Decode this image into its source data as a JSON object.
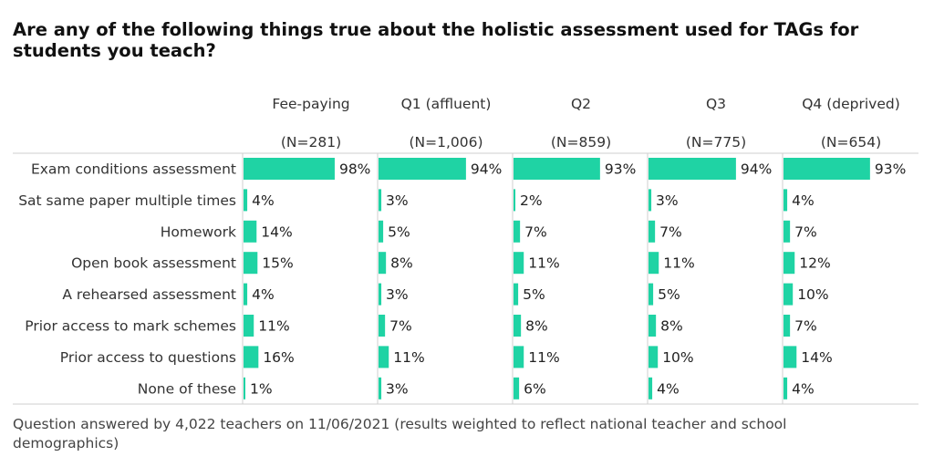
{
  "title": "Are any of the following things true about the holistic assessment used for TAGs for students you teach?",
  "footnote": "Question answered by 4,022 teachers on 11/06/2021 (results weighted to reflect national teacher and school demographics)",
  "colors": {
    "bar": "#1fd3a4",
    "divider": "#cfcfcf",
    "text": "#222222"
  },
  "chart_data": {
    "type": "bar",
    "orientation": "horizontal",
    "value_format": "percent",
    "xlim": [
      0,
      100
    ],
    "categories": [
      "Exam conditions assessment",
      "Sat same paper multiple times",
      "Homework",
      "Open book assessment",
      "A rehearsed assessment",
      "Prior access to mark schemes",
      "Prior access to questions",
      "None of these"
    ],
    "series": [
      {
        "name": "Fee-paying",
        "n_label": "(N=281)",
        "values": [
          98,
          4,
          14,
          15,
          4,
          11,
          16,
          1
        ]
      },
      {
        "name": "Q1 (affluent)",
        "n_label": "(N=1,006)",
        "values": [
          94,
          3,
          5,
          8,
          3,
          7,
          11,
          3
        ]
      },
      {
        "name": "Q2",
        "n_label": "(N=859)",
        "values": [
          93,
          2,
          7,
          11,
          5,
          8,
          11,
          6
        ]
      },
      {
        "name": "Q3",
        "n_label": "(N=775)",
        "values": [
          94,
          3,
          7,
          11,
          5,
          8,
          10,
          4
        ]
      },
      {
        "name": "Q4 (deprived)",
        "n_label": "(N=654)",
        "values": [
          93,
          4,
          7,
          12,
          10,
          7,
          14,
          4
        ]
      }
    ]
  }
}
